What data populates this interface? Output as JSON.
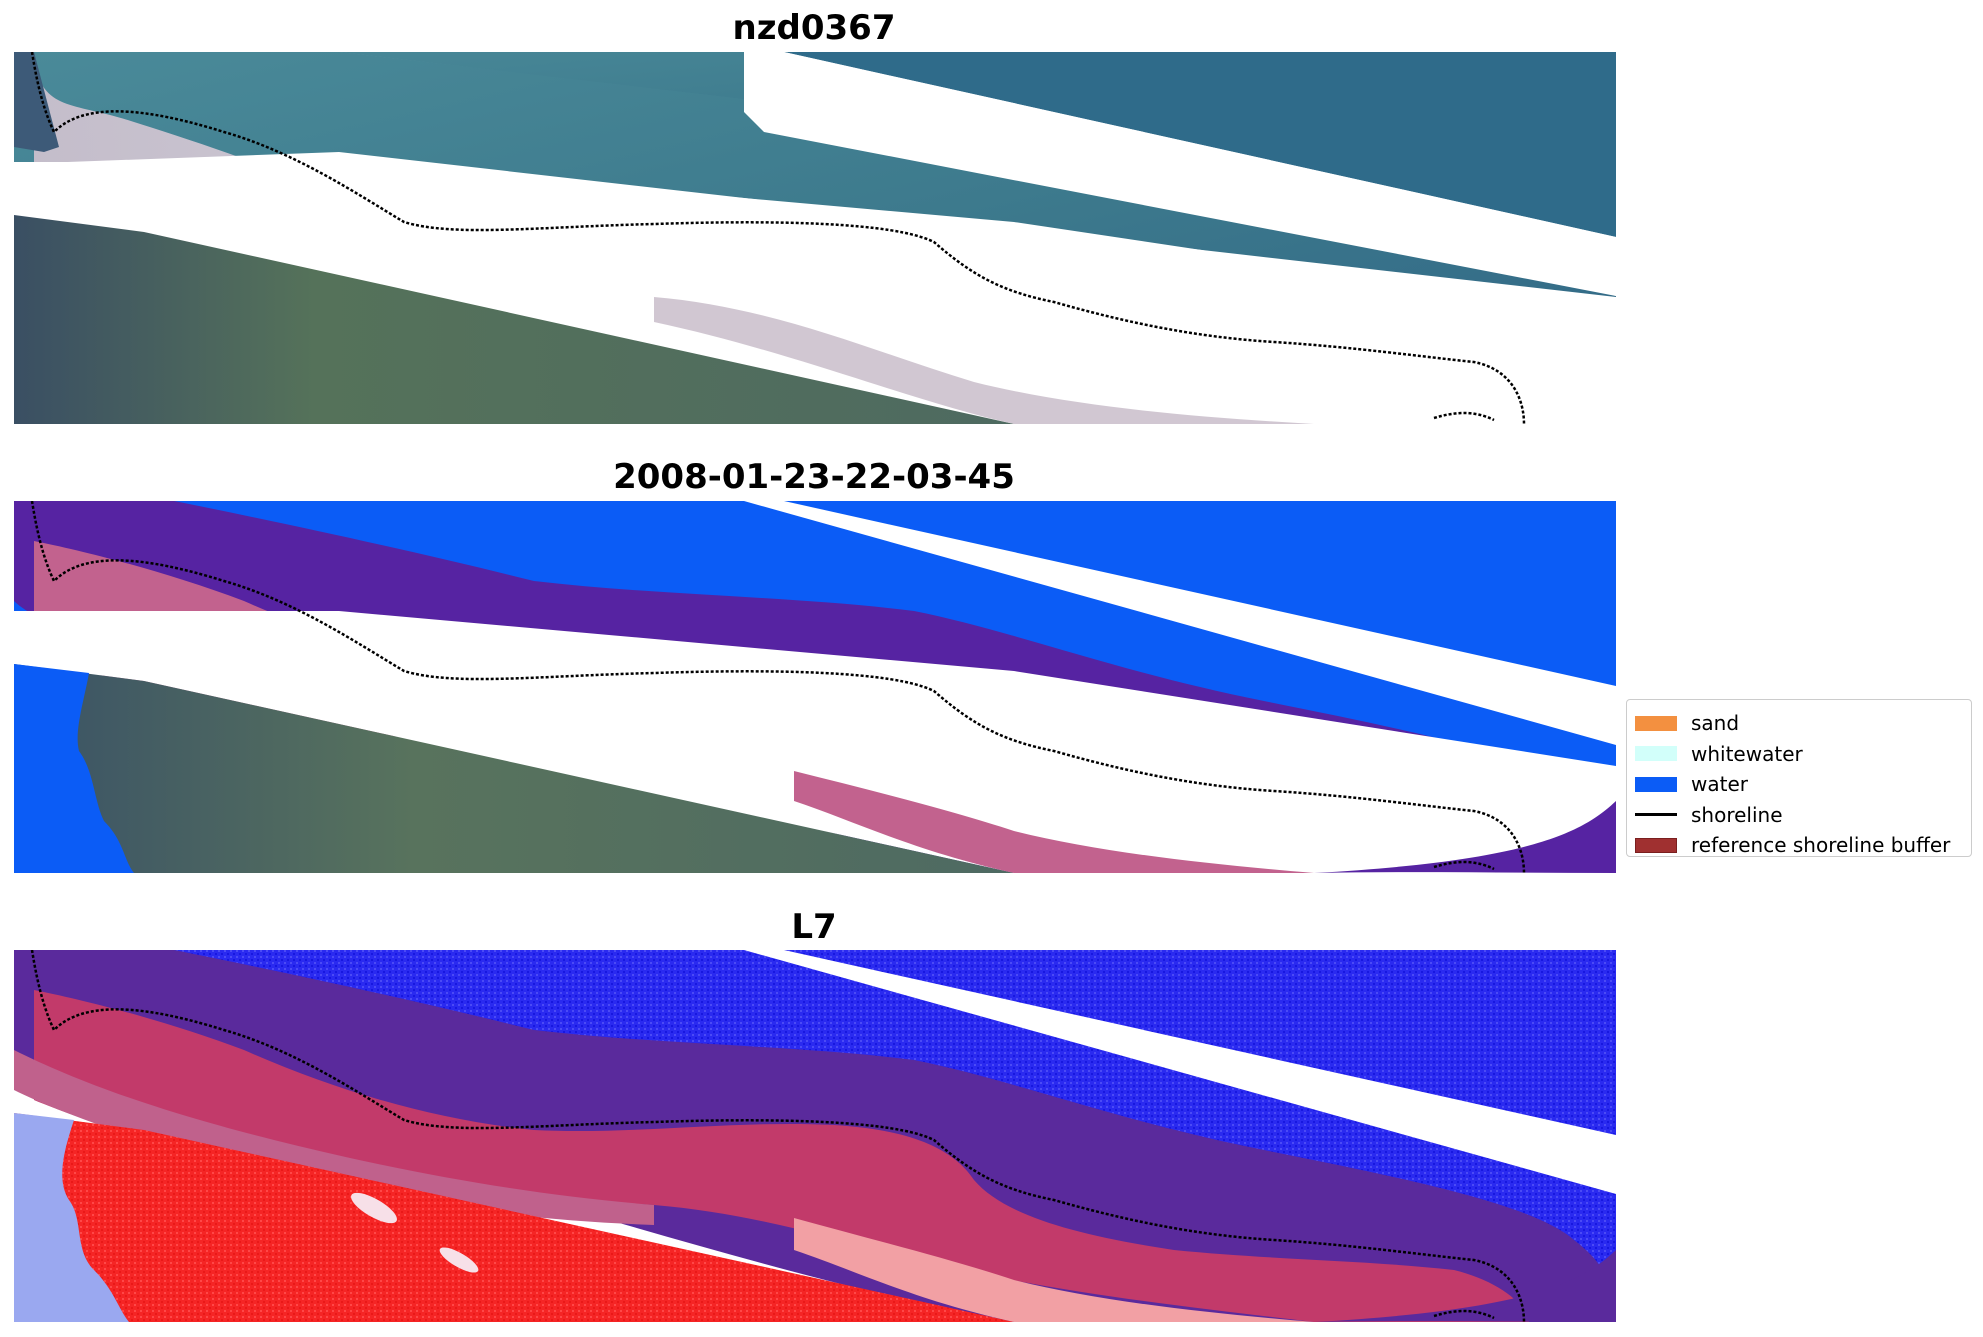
{
  "figure": {
    "panels": [
      {
        "title": "nzd0367"
      },
      {
        "title": "2008-01-23-22-03-45"
      },
      {
        "title": "L7"
      }
    ]
  },
  "legend": {
    "items": [
      {
        "label": "sand",
        "color": "#f39040",
        "kind": "patch"
      },
      {
        "label": "whitewater",
        "color": "#d2fffa",
        "kind": "patch"
      },
      {
        "label": "water",
        "color": "#0b5cf6",
        "kind": "patch"
      },
      {
        "label": "shoreline",
        "color": "#000000",
        "kind": "line"
      },
      {
        "label": "reference shoreline buffer",
        "color": "#a03030",
        "kind": "patch"
      }
    ]
  },
  "colors": {
    "rgb_water": "#3f7f90",
    "rgb_land": "#4a6a55",
    "rgb_beach": "#d9cfd8",
    "class_water": "#0b5cf6",
    "buffer_purple": "#5623a2",
    "beach_pink": "#c2628e",
    "mndwi_blue": "#2323f0",
    "mndwi_red": "#f52020"
  }
}
